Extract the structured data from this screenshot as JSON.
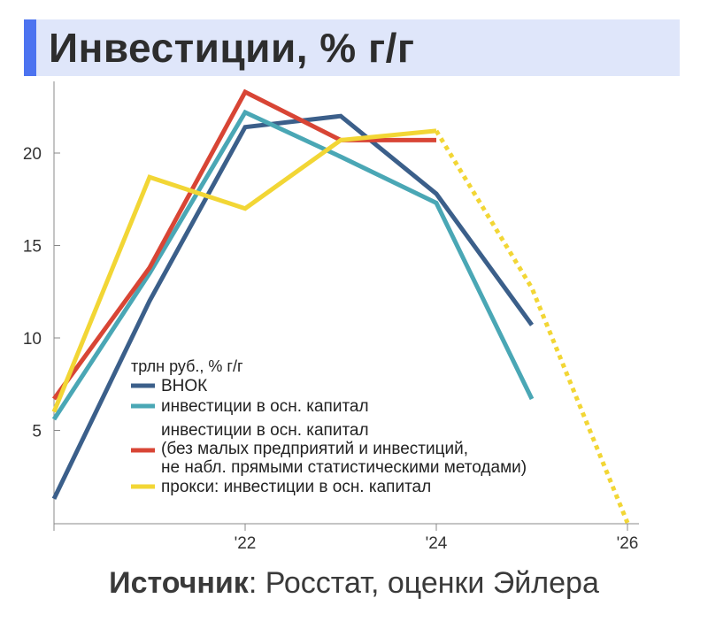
{
  "title": "Инвестиции, % г/г",
  "source": {
    "label": "Источник",
    "separator": ": ",
    "text": "Росстат, оценки Эйлера"
  },
  "chart_data": {
    "type": "line",
    "legend_title": "трлн руб., % г/г",
    "legend_placement": "bottom-left",
    "xlim": [
      2020,
      2026
    ],
    "ylim": [
      0,
      23.5
    ],
    "x_ticks": [
      {
        "value": 2022,
        "label": "'22"
      },
      {
        "value": 2024,
        "label": "'24"
      },
      {
        "value": 2026,
        "label": "'26"
      }
    ],
    "y_ticks": [
      {
        "value": 5,
        "label": "5"
      },
      {
        "value": 10,
        "label": "10"
      },
      {
        "value": 15,
        "label": "15"
      },
      {
        "value": 20,
        "label": "20"
      }
    ],
    "series": [
      {
        "name": "ВНОК",
        "color": "#3b5f8a",
        "x": [
          2020,
          2021,
          2022,
          2023,
          2024,
          2025
        ],
        "values": [
          1.3,
          12.0,
          21.4,
          22.0,
          17.8,
          10.7
        ]
      },
      {
        "name": "инвестиции в осн. капитал",
        "color": "#4aa7b5",
        "x": [
          2020,
          2021,
          2022,
          2023,
          2024,
          2025
        ],
        "values": [
          5.6,
          13.5,
          22.2,
          19.8,
          17.3,
          6.7
        ]
      },
      {
        "name": "инвестиции в осн. капитал\n(без малых предприятий и инвестиций,\nне набл. прямыми статистическими методами)",
        "color": "#d84535",
        "x": [
          2020,
          2021,
          2022,
          2023,
          2024
        ],
        "values": [
          6.7,
          13.8,
          23.3,
          20.7,
          20.7
        ]
      },
      {
        "name": "прокси: инвестиции в осн. капитал",
        "color": "#f2d635",
        "x": [
          2020,
          2021,
          2022,
          2023,
          2024
        ],
        "values": [
          6.0,
          18.7,
          17.0,
          20.7,
          21.2
        ],
        "projection": {
          "x": [
            2024,
            2025,
            2026
          ],
          "values": [
            21.2,
            12.7,
            0.0
          ]
        }
      }
    ]
  }
}
